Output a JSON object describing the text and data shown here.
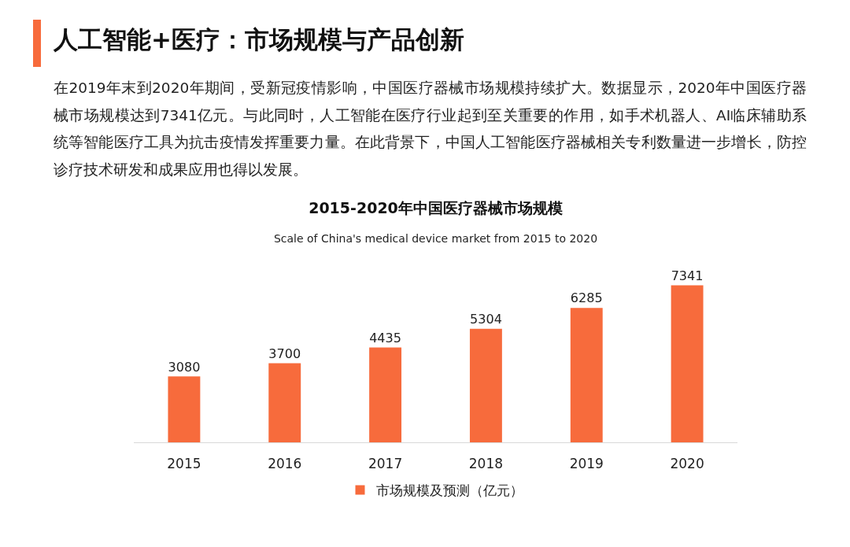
{
  "chart_data": {
    "type": "bar",
    "title": "2015-2020年中国医疗器械市场规模",
    "subtitle": "Scale of China's medical device market from 2015 to 2020",
    "annotations": [
      "人工智能+医疗：市场规模与产品创新",
      "在2019年末到2020年期间，受新冠疫情影响，中国医疗器械市场规模持续扩大。数据显示，2020年中国医疗器械市场规模达到7341亿元。与此同时，人工智能在医疗行业起到至关重要的作用，如手术机器人、AI临床辅助系统等智能医疗工具为抗击疫情发挥重要力量。在此背景下，中国人工智能医疗器械相关专利数量进一步增长，防控诊疗技术研发和成果应用也得以发展。"
    ],
    "categories": [
      "2015",
      "2016",
      "2017",
      "2018",
      "2019",
      "2020"
    ],
    "series": [
      {
        "name": "市场规模及预测（亿元）",
        "color": "#f76b3c",
        "values": [
          3080,
          3700,
          4435,
          5304,
          6285,
          7341
        ]
      }
    ],
    "data_labels": true,
    "legend": "bottom",
    "tick_labels": "x"
  }
}
